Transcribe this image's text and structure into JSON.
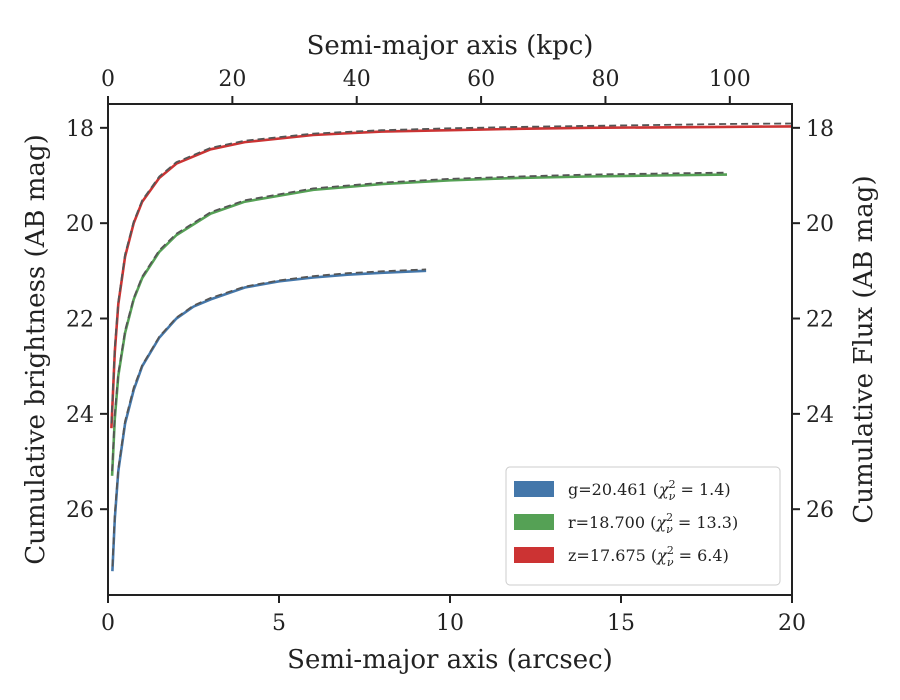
{
  "chart_data": {
    "type": "line",
    "xlabel": "Semi-major axis (arcsec)",
    "ylabel": "Cumulative brightness (AB mag)",
    "top_xlabel": "Semi-major axis (kpc)",
    "right_ylabel": "Cumulative Flux (AB mag)",
    "xlim": [
      0,
      20
    ],
    "ylim": [
      27.8,
      17.5
    ],
    "top_xlim": [
      0,
      110
    ],
    "x_ticks": [
      "0",
      "5",
      "10",
      "15",
      "20"
    ],
    "y_ticks": [
      "18",
      "20",
      "22",
      "24",
      "26"
    ],
    "top_x_ticks": [
      "0",
      "20",
      "40",
      "60",
      "80",
      "100"
    ],
    "right_y_ticks": [
      "18",
      "20",
      "22",
      "24",
      "26"
    ],
    "y_inverted": true,
    "legend_position": "lower-right",
    "series": [
      {
        "name": "g=20.461 (χ²ν = 1.4)",
        "label_parts": [
          "g=20.461 (",
          "χ",
          "2",
          "ν",
          " = 1.4)"
        ],
        "color": "#4477aa",
        "x": [
          0.13,
          0.2,
          0.3,
          0.5,
          0.75,
          1.0,
          1.5,
          2.0,
          2.5,
          3.0,
          4.0,
          5.0,
          6.0,
          7.0,
          8.0,
          9.3
        ],
        "y": [
          27.3,
          26.2,
          25.2,
          24.2,
          23.5,
          23.0,
          22.4,
          22.0,
          21.75,
          21.6,
          21.35,
          21.22,
          21.14,
          21.08,
          21.04,
          21.0
        ],
        "model_x": [
          0.13,
          0.2,
          0.3,
          0.5,
          0.75,
          1.0,
          1.5,
          2.0,
          2.5,
          3.0,
          4.0,
          5.0,
          6.0,
          7.0,
          8.0,
          9.3
        ],
        "model_y": [
          27.2,
          26.1,
          25.15,
          24.15,
          23.45,
          22.98,
          22.38,
          21.98,
          21.73,
          21.57,
          21.33,
          21.2,
          21.11,
          21.05,
          21.01,
          20.97
        ]
      },
      {
        "name": "r=18.700 (χ²ν = 13.3)",
        "label_parts": [
          "r=18.700 (",
          "χ",
          "2",
          "ν",
          " = 13.3)"
        ],
        "color": "#55a155",
        "x": [
          0.12,
          0.2,
          0.3,
          0.5,
          0.75,
          1.0,
          1.5,
          2.0,
          3.0,
          4.0,
          6.0,
          8.0,
          10.0,
          12.0,
          14.0,
          16.0,
          18.1
        ],
        "y": [
          25.3,
          24.1,
          23.2,
          22.3,
          21.6,
          21.15,
          20.6,
          20.25,
          19.8,
          19.55,
          19.3,
          19.18,
          19.1,
          19.05,
          19.02,
          19.0,
          18.98
        ],
        "model_x": [
          0.12,
          0.2,
          0.3,
          0.5,
          0.75,
          1.0,
          1.5,
          2.0,
          3.0,
          4.0,
          6.0,
          8.0,
          10.0,
          12.0,
          14.0,
          16.0,
          18.1
        ],
        "model_y": [
          25.2,
          24.0,
          23.15,
          22.25,
          21.57,
          21.12,
          20.57,
          20.22,
          19.77,
          19.52,
          19.27,
          19.15,
          19.07,
          19.02,
          18.98,
          18.96,
          18.94
        ]
      },
      {
        "name": "z=17.675 (χ²ν = 6.4)",
        "label_parts": [
          "z=17.675 (",
          "χ",
          "2",
          "ν",
          " = 6.4)"
        ],
        "color": "#cc3333",
        "x": [
          0.1,
          0.2,
          0.3,
          0.5,
          0.75,
          1.0,
          1.5,
          2.0,
          3.0,
          4.0,
          6.0,
          8.0,
          10.0,
          12.0,
          14.0,
          16.0,
          18.0,
          20.0
        ],
        "y": [
          24.3,
          22.7,
          21.7,
          20.7,
          20.0,
          19.55,
          19.05,
          18.75,
          18.45,
          18.3,
          18.15,
          18.08,
          18.05,
          18.02,
          18.0,
          17.99,
          17.98,
          17.97
        ],
        "model_x": [
          0.1,
          0.2,
          0.3,
          0.5,
          0.75,
          1.0,
          1.5,
          2.0,
          3.0,
          4.0,
          6.0,
          8.0,
          10.0,
          12.0,
          14.0,
          16.0,
          18.0,
          20.0
        ],
        "model_y": [
          24.2,
          22.6,
          21.65,
          20.65,
          19.97,
          19.52,
          19.02,
          18.72,
          18.42,
          18.27,
          18.12,
          18.05,
          18.01,
          17.98,
          17.96,
          17.94,
          17.92,
          17.91
        ]
      }
    ]
  }
}
